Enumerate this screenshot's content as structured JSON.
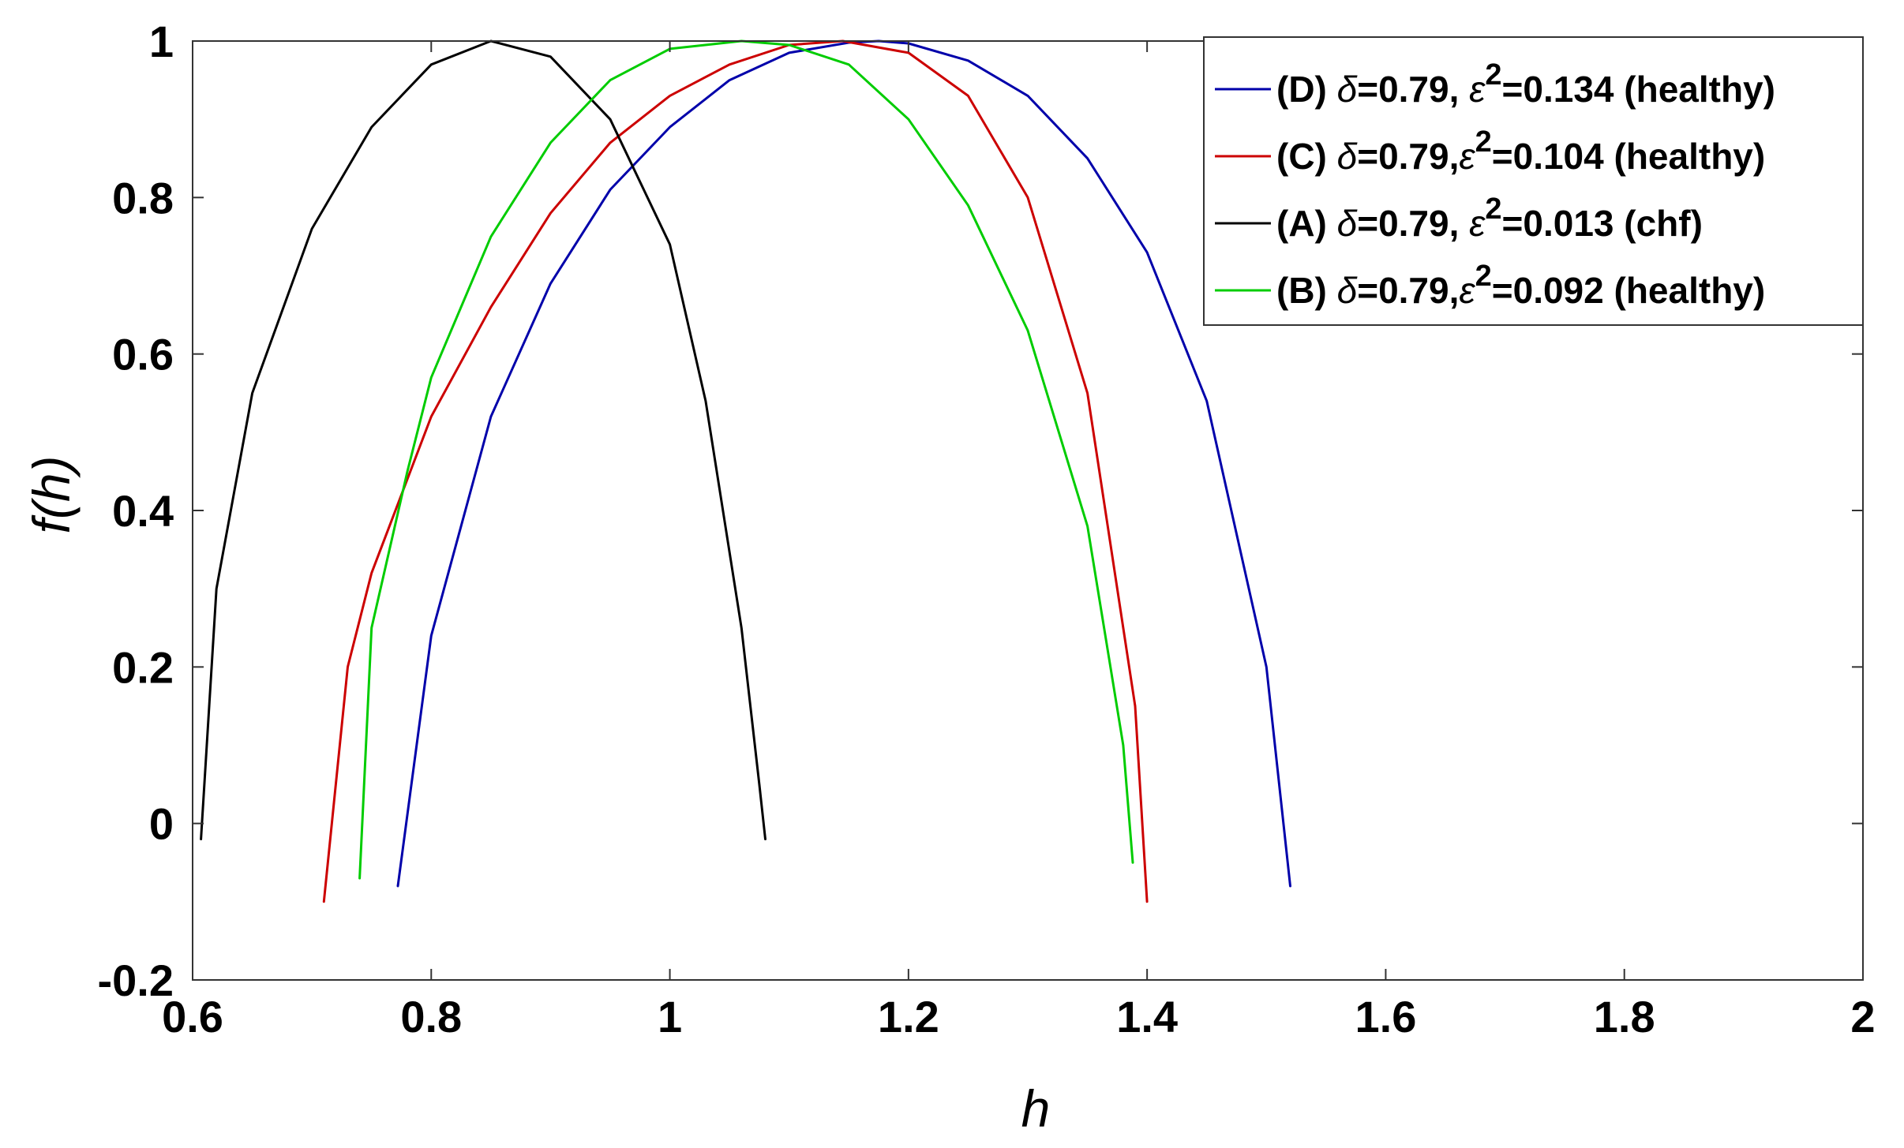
{
  "chart_data": {
    "type": "line",
    "xlabel": "h",
    "ylabel": "f(h)",
    "xlim": [
      0.6,
      2.0
    ],
    "ylim": [
      -0.2,
      1.0
    ],
    "xticks": [
      0.6,
      0.8,
      1.0,
      1.2,
      1.4,
      1.6,
      1.8,
      2.0
    ],
    "xtick_labels": [
      "0.6",
      "0.8",
      "1",
      "1.2",
      "1.4",
      "1.6",
      "1.8",
      "2"
    ],
    "yticks": [
      -0.2,
      0,
      0.2,
      0.4,
      0.6,
      0.8,
      1.0
    ],
    "ytick_labels": [
      "-0.2",
      "0",
      "0.2",
      "0.4",
      "0.6",
      "0.8",
      "1"
    ],
    "grid": false,
    "legend_position": "top-right",
    "series": [
      {
        "id": "D",
        "legend_parts": [
          "(D) ",
          "δ",
          "=0.79, ",
          "ε",
          "2",
          "=0.134 (healthy)"
        ],
        "color": "#0000aa",
        "x": [
          0.772,
          0.8,
          0.85,
          0.9,
          0.95,
          1.0,
          1.05,
          1.1,
          1.15,
          1.175,
          1.2,
          1.25,
          1.3,
          1.35,
          1.4,
          1.45,
          1.5,
          1.52
        ],
        "y": [
          -0.08,
          0.24,
          0.52,
          0.69,
          0.81,
          0.89,
          0.95,
          0.985,
          0.998,
          1.0,
          0.997,
          0.975,
          0.93,
          0.85,
          0.73,
          0.54,
          0.2,
          -0.08
        ]
      },
      {
        "id": "C",
        "legend_parts": [
          "(C) ",
          "δ",
          "=0.79,",
          "ε",
          "2",
          "=0.104 (healthy)"
        ],
        "color": "#cc0000",
        "x": [
          0.71,
          0.73,
          0.75,
          0.8,
          0.85,
          0.9,
          0.95,
          1.0,
          1.05,
          1.1,
          1.145,
          1.2,
          1.25,
          1.3,
          1.35,
          1.39,
          1.4
        ],
        "y": [
          -0.1,
          0.2,
          0.32,
          0.52,
          0.66,
          0.78,
          0.87,
          0.93,
          0.97,
          0.995,
          1.0,
          0.985,
          0.93,
          0.8,
          0.55,
          0.15,
          -0.1
        ]
      },
      {
        "id": "A",
        "legend_parts": [
          "(A) ",
          "δ",
          "=0.79, ",
          "ε",
          "2",
          "=0.013 (chf)"
        ],
        "color": "#000000",
        "x": [
          0.607,
          0.62,
          0.65,
          0.7,
          0.75,
          0.8,
          0.85,
          0.9,
          0.95,
          1.0,
          1.03,
          1.06,
          1.075,
          1.08
        ],
        "y": [
          -0.02,
          0.3,
          0.55,
          0.76,
          0.89,
          0.97,
          1.0,
          0.98,
          0.9,
          0.74,
          0.54,
          0.25,
          0.05,
          -0.02
        ]
      },
      {
        "id": "B",
        "legend_parts": [
          "(B) ",
          "δ",
          "=0.79,",
          "ε",
          "2",
          "=0.092 (healthy)"
        ],
        "color": "#00cc00",
        "x": [
          0.74,
          0.75,
          0.78,
          0.8,
          0.85,
          0.9,
          0.95,
          1.0,
          1.06,
          1.1,
          1.15,
          1.2,
          1.25,
          1.3,
          1.35,
          1.38,
          1.388
        ],
        "y": [
          -0.07,
          0.25,
          0.45,
          0.57,
          0.75,
          0.87,
          0.95,
          0.99,
          1.0,
          0.995,
          0.97,
          0.9,
          0.79,
          0.63,
          0.38,
          0.1,
          -0.05
        ]
      }
    ]
  }
}
